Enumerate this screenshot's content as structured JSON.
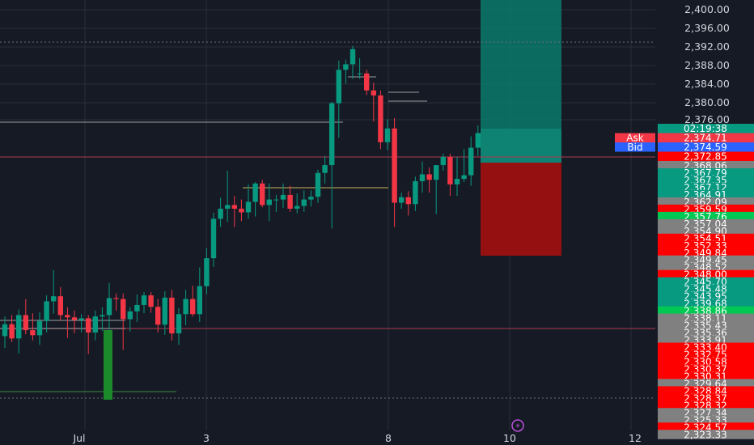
{
  "colors": {
    "background": "#161a25",
    "up": "#089981",
    "down": "#f23645",
    "grid": "#2a2e39",
    "axis_text": "#d1d4dc",
    "tag_red": "#ff0000",
    "tag_green": "#00c853",
    "tag_teal": "#089981",
    "tag_gray": "#808080",
    "ask": "#f23645",
    "bid": "#2962ff",
    "profit_zone": "#0a7a6b",
    "loss_zone": "#a31010"
  },
  "y_axis": {
    "min": 2322.5,
    "max": 2402,
    "ticks": [
      "2,400.00",
      "2,396.00",
      "2,392.00",
      "2,388.00",
      "2,384.00",
      "2,380.00",
      "2,376.00"
    ]
  },
  "x_axis": {
    "labels": [
      "Jul",
      "3",
      "8",
      "10",
      "12"
    ]
  },
  "quote": {
    "ask_label": "Ask",
    "ask_price": "2,374.71",
    "bid_label": "Bid",
    "bid_price": "2,374.59",
    "countdown": "02:19:38",
    "current_price": "2,372.85"
  },
  "price_tags": [
    {
      "text": "2,368.06",
      "color": "gray"
    },
    {
      "text": "2,367.79",
      "color": "teal"
    },
    {
      "text": "2,367.35",
      "color": "teal"
    },
    {
      "text": "2,367.12",
      "color": "teal"
    },
    {
      "text": "2,364.91",
      "color": "teal"
    },
    {
      "text": "2,362.09",
      "color": "gray"
    },
    {
      "text": "2,359.59",
      "color": "red"
    },
    {
      "text": "2,357.76",
      "color": "green"
    },
    {
      "text": "2,357.04",
      "color": "gray"
    },
    {
      "text": "2,354.90",
      "color": "gray"
    },
    {
      "text": "2,354.51",
      "color": "red"
    },
    {
      "text": "2,352.33",
      "color": "red"
    },
    {
      "text": "2,349.84",
      "color": "red"
    },
    {
      "text": "2,349.45",
      "color": "gray"
    },
    {
      "text": "2,348.52",
      "color": "gray"
    },
    {
      "text": "2,348.00",
      "color": "red"
    },
    {
      "text": "2,345.70",
      "color": "teal"
    },
    {
      "text": "2,345.48",
      "color": "teal"
    },
    {
      "text": "2,343.95",
      "color": "teal"
    },
    {
      "text": "2,339.68",
      "color": "teal"
    },
    {
      "text": "2,338.86",
      "color": "green"
    },
    {
      "text": "2,338.11",
      "color": "gray"
    },
    {
      "text": "2,335.43",
      "color": "gray"
    },
    {
      "text": "2,335.36",
      "color": "gray"
    },
    {
      "text": "2,333.91",
      "color": "gray"
    },
    {
      "text": "2,333.40",
      "color": "red"
    },
    {
      "text": "2,332.75",
      "color": "red"
    },
    {
      "text": "2,330.58",
      "color": "red"
    },
    {
      "text": "2,330.37",
      "color": "red"
    },
    {
      "text": "2,330.31",
      "color": "red"
    },
    {
      "text": "2,329.64",
      "color": "gray"
    },
    {
      "text": "2,328.84",
      "color": "red"
    },
    {
      "text": "2,328.37",
      "color": "red"
    },
    {
      "text": "2,328.32",
      "color": "red"
    },
    {
      "text": "2,327.34",
      "color": "gray"
    },
    {
      "text": "2,325.33",
      "color": "gray"
    },
    {
      "text": "2,324.57",
      "color": "red"
    },
    {
      "text": "2,323.33",
      "color": "gray"
    }
  ],
  "candles": [
    {
      "o": 2328.8,
      "h": 2333.1,
      "l": 2326.2,
      "c": 2331.4
    },
    {
      "o": 2331.4,
      "h": 2333.4,
      "l": 2327.5,
      "c": 2328.3
    },
    {
      "o": 2328.3,
      "h": 2334.6,
      "l": 2325.0,
      "c": 2333.4
    },
    {
      "o": 2333.4,
      "h": 2336.9,
      "l": 2329.2,
      "c": 2330.1
    },
    {
      "o": 2330.1,
      "h": 2333.8,
      "l": 2327.9,
      "c": 2329.0
    },
    {
      "o": 2329.0,
      "h": 2334.0,
      "l": 2326.9,
      "c": 2332.1
    },
    {
      "o": 2332.1,
      "h": 2337.7,
      "l": 2329.6,
      "c": 2336.4
    },
    {
      "o": 2336.4,
      "h": 2343.2,
      "l": 2333.7,
      "c": 2337.5
    },
    {
      "o": 2337.5,
      "h": 2339.5,
      "l": 2332.1,
      "c": 2333.4
    },
    {
      "o": 2333.4,
      "h": 2335.1,
      "l": 2328.4,
      "c": 2332.9
    },
    {
      "o": 2332.9,
      "h": 2334.4,
      "l": 2329.4,
      "c": 2332.3
    },
    {
      "o": 2332.3,
      "h": 2333.6,
      "l": 2329.6,
      "c": 2332.7
    },
    {
      "o": 2332.7,
      "h": 2333.4,
      "l": 2324.9,
      "c": 2329.6
    },
    {
      "o": 2329.6,
      "h": 2334.4,
      "l": 2327.9,
      "c": 2333.1
    },
    {
      "o": 2333.1,
      "h": 2335.1,
      "l": 2329.9,
      "c": 2333.4
    },
    {
      "o": 2333.4,
      "h": 2340.4,
      "l": 2330.1,
      "c": 2337.1
    },
    {
      "o": 2337.1,
      "h": 2338.1,
      "l": 2334.4,
      "c": 2336.9
    },
    {
      "o": 2336.9,
      "h": 2338.1,
      "l": 2325.8,
      "c": 2332.5
    },
    {
      "o": 2332.5,
      "h": 2335.1,
      "l": 2329.8,
      "c": 2334.2
    },
    {
      "o": 2334.2,
      "h": 2337.9,
      "l": 2331.9,
      "c": 2335.6
    },
    {
      "o": 2335.6,
      "h": 2338.4,
      "l": 2333.8,
      "c": 2337.7
    },
    {
      "o": 2337.7,
      "h": 2338.4,
      "l": 2333.9,
      "c": 2335.2
    },
    {
      "o": 2335.2,
      "h": 2336.9,
      "l": 2329.6,
      "c": 2331.3
    },
    {
      "o": 2331.3,
      "h": 2338.6,
      "l": 2329.1,
      "c": 2337.2
    },
    {
      "o": 2337.2,
      "h": 2338.9,
      "l": 2327.8,
      "c": 2329.4
    },
    {
      "o": 2329.4,
      "h": 2334.9,
      "l": 2326.9,
      "c": 2333.6
    },
    {
      "o": 2333.6,
      "h": 2338.9,
      "l": 2331.2,
      "c": 2336.9
    },
    {
      "o": 2336.9,
      "h": 2339.8,
      "l": 2333.1,
      "c": 2333.6
    },
    {
      "o": 2333.6,
      "h": 2343.8,
      "l": 2331.9,
      "c": 2339.7
    },
    {
      "o": 2339.7,
      "h": 2348.0,
      "l": 2337.9,
      "c": 2345.8
    },
    {
      "o": 2345.8,
      "h": 2355.7,
      "l": 2343.9,
      "c": 2354.4
    },
    {
      "o": 2354.4,
      "h": 2359.0,
      "l": 2352.6,
      "c": 2356.6
    },
    {
      "o": 2356.6,
      "h": 2364.9,
      "l": 2353.7,
      "c": 2357.4
    },
    {
      "o": 2357.4,
      "h": 2359.4,
      "l": 2352.6,
      "c": 2356.6
    },
    {
      "o": 2356.6,
      "h": 2358.6,
      "l": 2353.9,
      "c": 2355.8
    },
    {
      "o": 2355.8,
      "h": 2361.9,
      "l": 2354.4,
      "c": 2358.1
    },
    {
      "o": 2358.1,
      "h": 2362.4,
      "l": 2354.9,
      "c": 2362.1
    },
    {
      "o": 2362.1,
      "h": 2362.9,
      "l": 2356.9,
      "c": 2357.4
    },
    {
      "o": 2357.4,
      "h": 2362.1,
      "l": 2353.9,
      "c": 2358.6
    },
    {
      "o": 2358.6,
      "h": 2359.6,
      "l": 2355.9,
      "c": 2358.6
    },
    {
      "o": 2358.6,
      "h": 2362.1,
      "l": 2356.8,
      "c": 2359.6
    },
    {
      "o": 2359.6,
      "h": 2361.6,
      "l": 2355.9,
      "c": 2356.6
    },
    {
      "o": 2356.6,
      "h": 2359.9,
      "l": 2355.6,
      "c": 2357.2
    },
    {
      "o": 2357.2,
      "h": 2360.6,
      "l": 2355.9,
      "c": 2358.6
    },
    {
      "o": 2358.6,
      "h": 2360.6,
      "l": 2357.1,
      "c": 2359.2
    },
    {
      "o": 2359.2,
      "h": 2365.1,
      "l": 2357.9,
      "c": 2364.4
    },
    {
      "o": 2364.4,
      "h": 2368.1,
      "l": 2362.1,
      "c": 2366.1
    },
    {
      "o": 2366.1,
      "h": 2379.9,
      "l": 2352.3,
      "c": 2379.6
    },
    {
      "o": 2379.6,
      "h": 2388.9,
      "l": 2372.1,
      "c": 2386.9
    },
    {
      "o": 2386.9,
      "h": 2389.1,
      "l": 2383.9,
      "c": 2388.1
    },
    {
      "o": 2388.1,
      "h": 2392.1,
      "l": 2384.9,
      "c": 2391.4
    },
    {
      "o": 2386.1,
      "h": 2389.4,
      "l": 2384.9,
      "c": 2386.1
    },
    {
      "o": 2386.1,
      "h": 2386.9,
      "l": 2381.4,
      "c": 2382.4
    },
    {
      "o": 2382.4,
      "h": 2384.1,
      "l": 2375.6,
      "c": 2381.3
    },
    {
      "o": 2381.3,
      "h": 2382.4,
      "l": 2369.6,
      "c": 2371.1
    },
    {
      "o": 2371.1,
      "h": 2376.1,
      "l": 2369.4,
      "c": 2374.1
    },
    {
      "o": 2374.1,
      "h": 2376.4,
      "l": 2352.6,
      "c": 2357.9
    },
    {
      "o": 2357.9,
      "h": 2360.1,
      "l": 2356.6,
      "c": 2359.1
    },
    {
      "o": 2359.1,
      "h": 2360.4,
      "l": 2355.1,
      "c": 2357.6
    },
    {
      "o": 2357.6,
      "h": 2363.6,
      "l": 2356.1,
      "c": 2362.6
    },
    {
      "o": 2362.6,
      "h": 2366.9,
      "l": 2360.1,
      "c": 2364.1
    },
    {
      "o": 2364.1,
      "h": 2365.6,
      "l": 2360.1,
      "c": 2362.9
    },
    {
      "o": 2362.9,
      "h": 2366.1,
      "l": 2355.4,
      "c": 2366.1
    },
    {
      "o": 2366.1,
      "h": 2368.6,
      "l": 2364.9,
      "c": 2367.9
    },
    {
      "o": 2367.9,
      "h": 2368.6,
      "l": 2359.4,
      "c": 2361.9
    },
    {
      "o": 2361.9,
      "h": 2367.9,
      "l": 2359.4,
      "c": 2363.1
    },
    {
      "o": 2363.1,
      "h": 2369.6,
      "l": 2362.4,
      "c": 2363.9
    },
    {
      "o": 2363.9,
      "h": 2372.4,
      "l": 2361.6,
      "c": 2369.9
    },
    {
      "o": 2369.9,
      "h": 2374.8,
      "l": 2368.1,
      "c": 2373.1
    }
  ]
}
